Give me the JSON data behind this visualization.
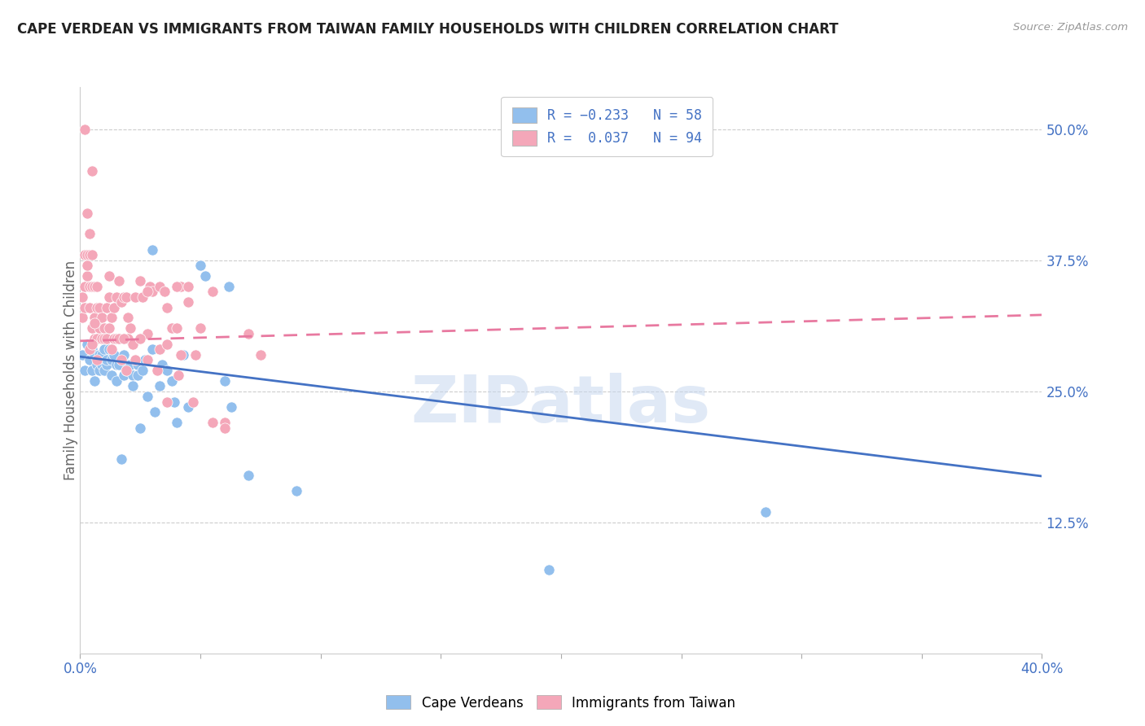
{
  "title": "CAPE VERDEAN VS IMMIGRANTS FROM TAIWAN FAMILY HOUSEHOLDS WITH CHILDREN CORRELATION CHART",
  "source": "Source: ZipAtlas.com",
  "ylabel": "Family Households with Children",
  "ytick_labels": [
    "12.5%",
    "25.0%",
    "37.5%",
    "50.0%"
  ],
  "ytick_values": [
    0.125,
    0.25,
    0.375,
    0.5
  ],
  "xlim": [
    0.0,
    0.4
  ],
  "ylim": [
    0.0,
    0.54
  ],
  "watermark": "ZIPatlas",
  "blue_color": "#92BFED",
  "pink_color": "#F4A7B9",
  "blue_line_color": "#4472C4",
  "pink_line_color": "#E879A0",
  "blue_scatter": [
    [
      0.001,
      0.285
    ],
    [
      0.002,
      0.27
    ],
    [
      0.003,
      0.295
    ],
    [
      0.004,
      0.28
    ],
    [
      0.005,
      0.29
    ],
    [
      0.005,
      0.27
    ],
    [
      0.006,
      0.26
    ],
    [
      0.006,
      0.285
    ],
    [
      0.007,
      0.275
    ],
    [
      0.008,
      0.285
    ],
    [
      0.008,
      0.27
    ],
    [
      0.009,
      0.285
    ],
    [
      0.009,
      0.275
    ],
    [
      0.01,
      0.29
    ],
    [
      0.01,
      0.27
    ],
    [
      0.011,
      0.275
    ],
    [
      0.011,
      0.28
    ],
    [
      0.012,
      0.29
    ],
    [
      0.013,
      0.28
    ],
    [
      0.013,
      0.265
    ],
    [
      0.014,
      0.285
    ],
    [
      0.015,
      0.275
    ],
    [
      0.015,
      0.26
    ],
    [
      0.016,
      0.275
    ],
    [
      0.017,
      0.185
    ],
    [
      0.018,
      0.285
    ],
    [
      0.018,
      0.265
    ],
    [
      0.019,
      0.27
    ],
    [
      0.02,
      0.275
    ],
    [
      0.021,
      0.275
    ],
    [
      0.022,
      0.265
    ],
    [
      0.022,
      0.255
    ],
    [
      0.024,
      0.275
    ],
    [
      0.024,
      0.265
    ],
    [
      0.025,
      0.215
    ],
    [
      0.026,
      0.27
    ],
    [
      0.027,
      0.28
    ],
    [
      0.028,
      0.245
    ],
    [
      0.03,
      0.385
    ],
    [
      0.03,
      0.29
    ],
    [
      0.031,
      0.23
    ],
    [
      0.033,
      0.255
    ],
    [
      0.034,
      0.275
    ],
    [
      0.036,
      0.27
    ],
    [
      0.038,
      0.26
    ],
    [
      0.039,
      0.24
    ],
    [
      0.04,
      0.22
    ],
    [
      0.043,
      0.285
    ],
    [
      0.045,
      0.235
    ],
    [
      0.05,
      0.37
    ],
    [
      0.052,
      0.36
    ],
    [
      0.06,
      0.26
    ],
    [
      0.062,
      0.35
    ],
    [
      0.063,
      0.235
    ],
    [
      0.07,
      0.17
    ],
    [
      0.09,
      0.155
    ],
    [
      0.195,
      0.08
    ],
    [
      0.285,
      0.135
    ]
  ],
  "pink_scatter": [
    [
      0.001,
      0.34
    ],
    [
      0.001,
      0.32
    ],
    [
      0.002,
      0.38
    ],
    [
      0.002,
      0.35
    ],
    [
      0.002,
      0.33
    ],
    [
      0.003,
      0.42
    ],
    [
      0.003,
      0.38
    ],
    [
      0.003,
      0.36
    ],
    [
      0.004,
      0.4
    ],
    [
      0.004,
      0.38
    ],
    [
      0.004,
      0.35
    ],
    [
      0.004,
      0.33
    ],
    [
      0.005,
      0.46
    ],
    [
      0.005,
      0.38
    ],
    [
      0.005,
      0.35
    ],
    [
      0.005,
      0.31
    ],
    [
      0.006,
      0.35
    ],
    [
      0.006,
      0.32
    ],
    [
      0.006,
      0.3
    ],
    [
      0.007,
      0.35
    ],
    [
      0.007,
      0.33
    ],
    [
      0.007,
      0.3
    ],
    [
      0.008,
      0.33
    ],
    [
      0.008,
      0.31
    ],
    [
      0.009,
      0.32
    ],
    [
      0.009,
      0.3
    ],
    [
      0.01,
      0.31
    ],
    [
      0.01,
      0.3
    ],
    [
      0.011,
      0.33
    ],
    [
      0.011,
      0.3
    ],
    [
      0.012,
      0.34
    ],
    [
      0.012,
      0.31
    ],
    [
      0.013,
      0.32
    ],
    [
      0.013,
      0.29
    ],
    [
      0.014,
      0.33
    ],
    [
      0.014,
      0.3
    ],
    [
      0.015,
      0.34
    ],
    [
      0.015,
      0.3
    ],
    [
      0.016,
      0.355
    ],
    [
      0.016,
      0.3
    ],
    [
      0.017,
      0.335
    ],
    [
      0.017,
      0.28
    ],
    [
      0.018,
      0.34
    ],
    [
      0.019,
      0.34
    ],
    [
      0.019,
      0.27
    ],
    [
      0.02,
      0.3
    ],
    [
      0.021,
      0.31
    ],
    [
      0.022,
      0.295
    ],
    [
      0.023,
      0.34
    ],
    [
      0.023,
      0.28
    ],
    [
      0.025,
      0.355
    ],
    [
      0.026,
      0.34
    ],
    [
      0.028,
      0.305
    ],
    [
      0.028,
      0.28
    ],
    [
      0.029,
      0.35
    ],
    [
      0.03,
      0.345
    ],
    [
      0.032,
      0.27
    ],
    [
      0.033,
      0.29
    ],
    [
      0.036,
      0.33
    ],
    [
      0.036,
      0.295
    ],
    [
      0.036,
      0.24
    ],
    [
      0.038,
      0.31
    ],
    [
      0.04,
      0.31
    ],
    [
      0.041,
      0.265
    ],
    [
      0.042,
      0.35
    ],
    [
      0.042,
      0.285
    ],
    [
      0.045,
      0.335
    ],
    [
      0.047,
      0.24
    ],
    [
      0.048,
      0.285
    ],
    [
      0.05,
      0.31
    ],
    [
      0.055,
      0.345
    ],
    [
      0.06,
      0.22
    ],
    [
      0.07,
      0.305
    ],
    [
      0.075,
      0.285
    ],
    [
      0.002,
      0.5
    ],
    [
      0.003,
      0.37
    ],
    [
      0.012,
      0.36
    ],
    [
      0.004,
      0.29
    ],
    [
      0.005,
      0.295
    ],
    [
      0.006,
      0.315
    ],
    [
      0.007,
      0.28
    ],
    [
      0.018,
      0.3
    ],
    [
      0.02,
      0.32
    ],
    [
      0.025,
      0.3
    ],
    [
      0.028,
      0.345
    ],
    [
      0.033,
      0.35
    ],
    [
      0.035,
      0.345
    ],
    [
      0.04,
      0.35
    ],
    [
      0.045,
      0.35
    ],
    [
      0.055,
      0.22
    ],
    [
      0.06,
      0.215
    ]
  ],
  "blue_trendline_x": [
    0.0,
    0.4
  ],
  "blue_trendline_y_start": 0.283,
  "blue_trendline_slope": -0.285,
  "pink_trendline_x": [
    0.0,
    0.4
  ],
  "pink_trendline_y_start": 0.298,
  "pink_trendline_slope": 0.062
}
